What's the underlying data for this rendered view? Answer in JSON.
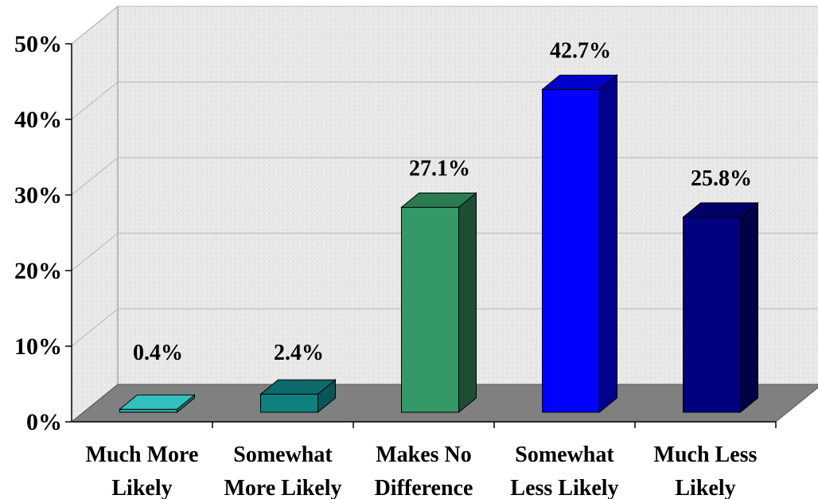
{
  "chart_data": {
    "type": "bar",
    "categories": [
      [
        "Much More",
        "Likely"
      ],
      [
        "Somewhat",
        "More Likely"
      ],
      [
        "Makes No",
        "Difference"
      ],
      [
        "Somewhat",
        "Less Likely"
      ],
      [
        "Much Less",
        "Likely"
      ]
    ],
    "values": [
      0.4,
      2.4,
      27.1,
      42.7,
      25.8
    ],
    "data_labels": [
      "0.4%",
      "2.4%",
      "27.1%",
      "42.7%",
      "25.8%"
    ],
    "y_ticks": [
      "0%",
      "10%",
      "20%",
      "30%",
      "40%",
      "50%"
    ],
    "ylim": [
      0,
      50
    ],
    "grid": true,
    "three_d": true,
    "bar_colors": [
      {
        "front": "#2aa5a5",
        "side": "#1c7272",
        "top": "#33c0c0"
      },
      {
        "front": "#0f7f7f",
        "side": "#095656",
        "top": "#0d6b6b"
      },
      {
        "front": "#339966",
        "side": "#1e4d33",
        "top": "#2a7a52"
      },
      {
        "front": "#0000ff",
        "side": "#00008c",
        "top": "#0000cc"
      },
      {
        "front": "#000080",
        "side": "#000048",
        "top": "#000066"
      }
    ],
    "floor_color": "#808080",
    "wall_color": "#e8e8e8"
  }
}
